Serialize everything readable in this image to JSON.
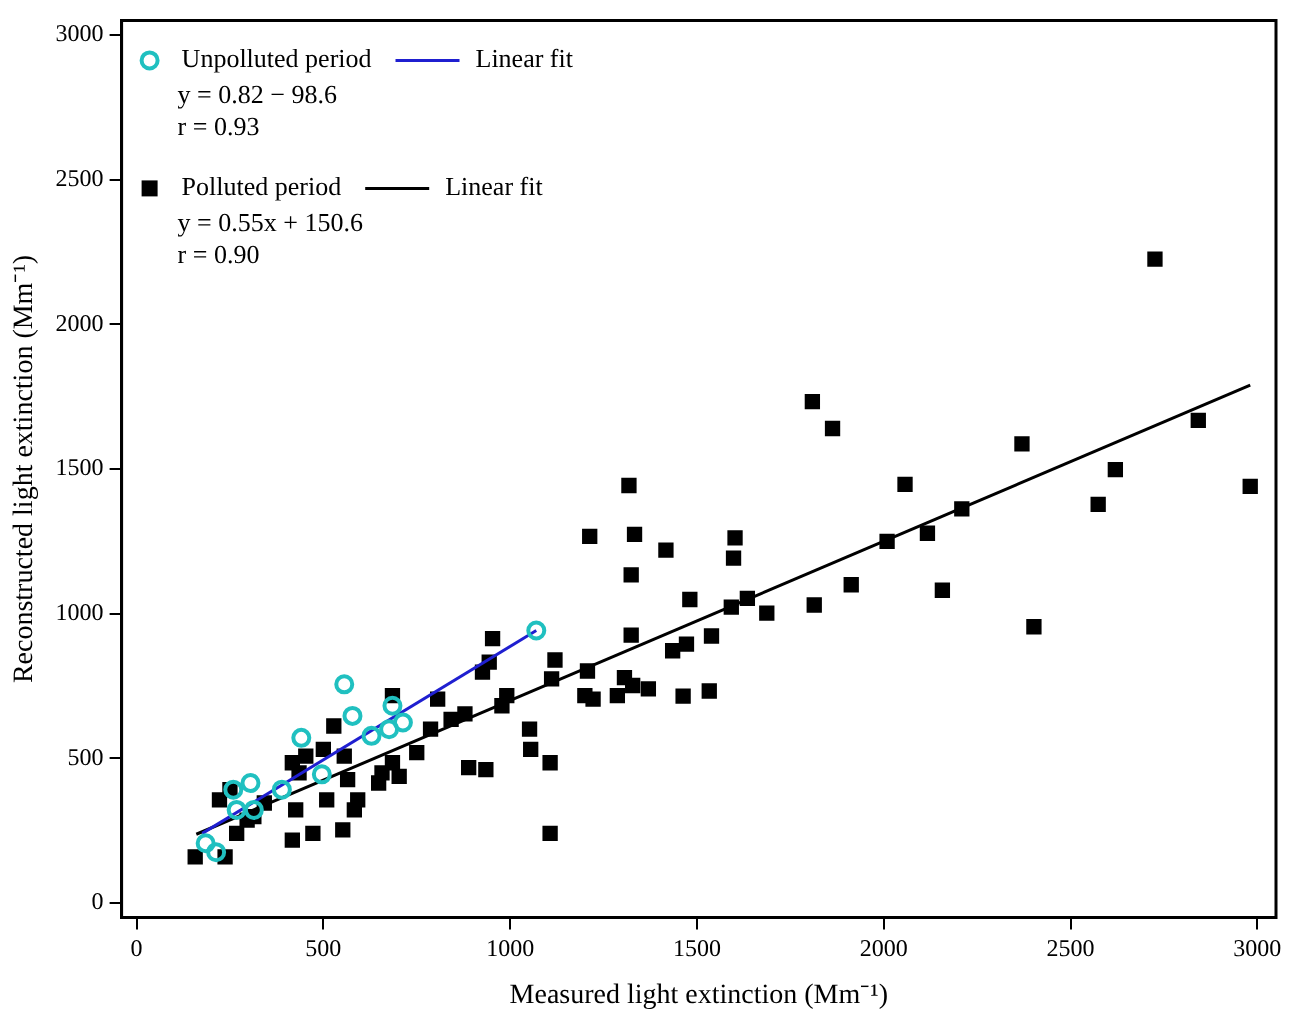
{
  "chart_data": {
    "type": "scatter",
    "xlabel": "Measured light extinction (Mm⁻¹)",
    "ylabel": "Reconstructed light extinction (Mm⁻¹)",
    "xlim": [
      -40,
      3050
    ],
    "ylim": [
      -50,
      3050
    ],
    "xticks": [
      0,
      500,
      1000,
      1500,
      2000,
      2500,
      3000
    ],
    "yticks": [
      0,
      500,
      1000,
      1500,
      2000,
      2500,
      3000
    ],
    "grid": false,
    "legend": "top left",
    "annotations": [
      "y = 0.82 − 98.6",
      "r = 0.93",
      "y = 0.55x + 150.6",
      "r = 0.90"
    ],
    "series": [
      {
        "name": "Unpolluted period",
        "type": "scatter",
        "marker": "circle",
        "color": "#20c0c0",
        "x": [
          185,
          213,
          259,
          305,
          314,
          268,
          389,
          441,
          496,
          556,
          578,
          629,
          676,
          685,
          713,
          1070
        ],
        "values": [
          207,
          176,
          392,
          415,
          322,
          322,
          392,
          571,
          445,
          756,
          647,
          578,
          601,
          682,
          624,
          942
        ]
      },
      {
        "name": "Linear fit",
        "type": "line",
        "marker": "none",
        "color": "#1f1fd0",
        "x": [
          176,
          1070
        ],
        "values": [
          241,
          942
        ]
      },
      {
        "name": "Polluted period",
        "type": "scatter",
        "marker": "square",
        "color": "#000000",
        "x": [
          157,
          237,
          222,
          268,
          296,
          250,
          314,
          342,
          417,
          426,
          417,
          472,
          435,
          453,
          509,
          500,
          528,
          552,
          556,
          565,
          583,
          592,
          648,
          657,
          685,
          685,
          703,
          750,
          787,
          806,
          842,
          879,
          889,
          935,
          926,
          944,
          953,
          978,
          991,
          1052,
          1055,
          1107,
          1107,
          1120,
          1207,
          1200,
          1222,
          1287,
          1306,
          1324,
          1370,
          1213,
          1333,
          1324,
          1318,
          1417,
          1111,
          1809,
          1863,
          2370,
          2057,
          2209,
          2117,
          2009,
          2157,
          1913,
          1814,
          1687,
          1635,
          1592,
          1602,
          1598,
          1481,
          1539,
          1472,
          1435,
          1463,
          1533,
          1328,
          2726,
          2842,
          2981,
          2620,
          2574,
          2402
        ],
        "values": [
          160,
          160,
          357,
          241,
          287,
          392,
          299,
          346,
          485,
          322,
          218,
          241,
          450,
          508,
          357,
          531,
          612,
          253,
          508,
          427,
          322,
          357,
          415,
          450,
          485,
          717,
          438,
          520,
          601,
          705,
          635,
          654,
          468,
          461,
          798,
          833,
          914,
          682,
          717,
          601,
          531,
          485,
          241,
          840,
          802,
          717,
          705,
          717,
          779,
          926,
          740,
          1267,
          1274,
          1134,
          1443,
          1220,
          775,
          1733,
          1640,
          1587,
          1447,
          1362,
          1278,
          1250,
          1081,
          1100,
          1030,
          1002,
          1053,
          1023,
          1262,
          1192,
          1049,
          923,
          895,
          872,
          715,
          733,
          752,
          2225,
          1668,
          1440,
          1498,
          1378,
          955
        ]
      },
      {
        "name": "Linear fit",
        "type": "line",
        "marker": "none",
        "color": "#000000",
        "x": [
          160,
          2981
        ],
        "values": [
          238,
          1790
        ]
      }
    ]
  }
}
